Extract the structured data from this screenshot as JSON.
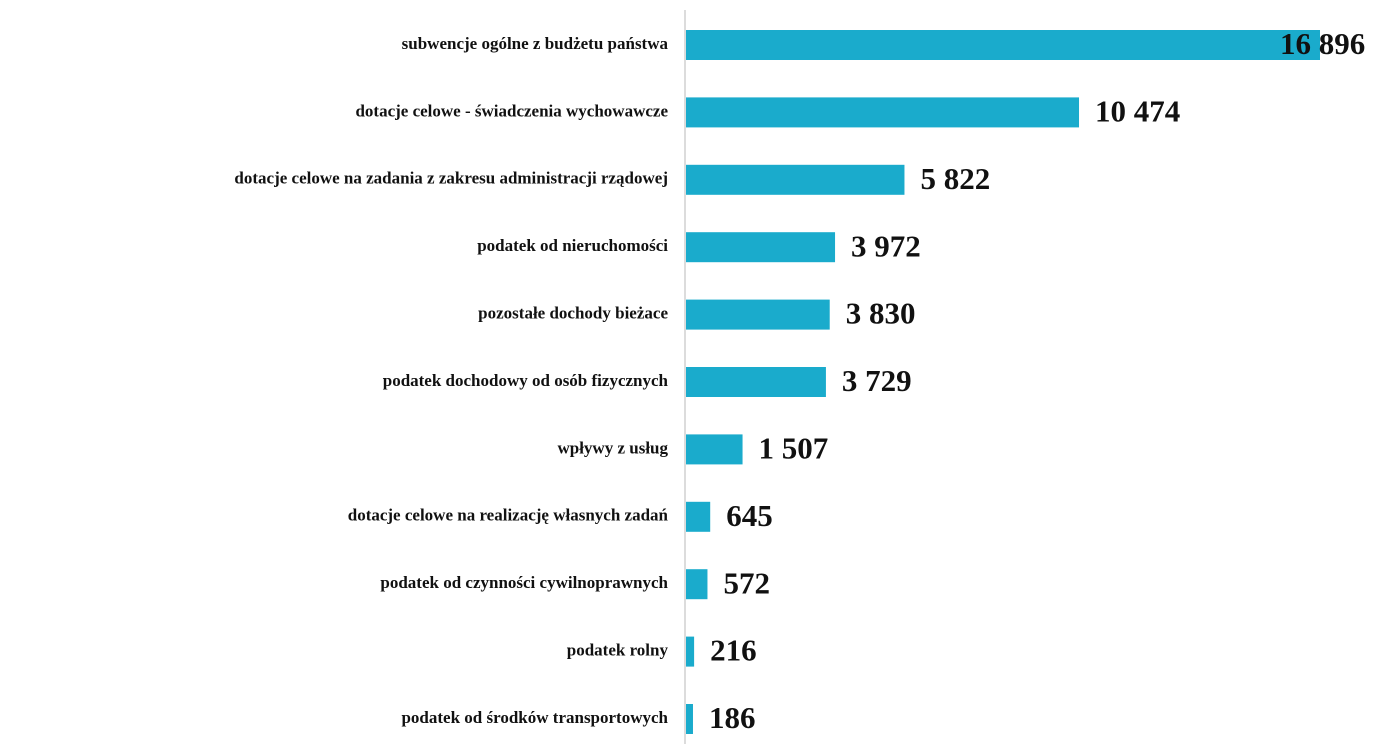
{
  "chart_data": {
    "type": "bar",
    "orientation": "horizontal",
    "categories": [
      "subwencje ogólne z budżetu państwa",
      "dotacje celowe - świadczenia wychowawcze",
      "dotacje celowe na zadania z zakresu administracji rządowej",
      "podatek od nieruchomości",
      "pozostałe dochody bieżace",
      "podatek dochodowy od osób fizycznych",
      "wpływy z usług",
      "dotacje celowe na realizację własnych zadań",
      "podatek od czynności cywilnoprawnych",
      "podatek rolny",
      "podatek od środków transportowych"
    ],
    "values": [
      16896,
      10474,
      5822,
      3972,
      3830,
      3729,
      1507,
      645,
      572,
      216,
      186
    ],
    "value_labels": [
      "16 896",
      "10 474",
      "5 822",
      "3 972",
      "3 830",
      "3 729",
      "1 507",
      "645",
      "572",
      "216",
      "186"
    ],
    "color": "#1aabcc"
  }
}
